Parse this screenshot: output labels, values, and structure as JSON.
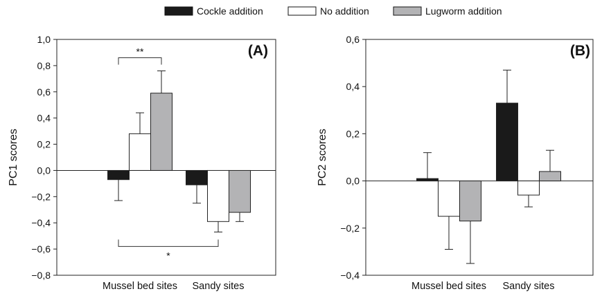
{
  "legend": [
    {
      "label": "Cockle addition",
      "color": "#1a1a1a"
    },
    {
      "label": "No addition",
      "color": "#ffffff"
    },
    {
      "label": "Lugworm addition",
      "color": "#b3b3b5"
    }
  ],
  "chart_data": [
    {
      "type": "bar",
      "panel_label": "(A)",
      "ylabel": "PC1 scores",
      "categories": [
        "Mussel bed sites",
        "Sandy sites"
      ],
      "ylim": [
        -0.8,
        1.0
      ],
      "yticks": [
        "1,0",
        "0,8",
        "0,6",
        "0,4",
        "0,2",
        "0,0",
        "−0,2",
        "−0,4",
        "−0,6",
        "−0,8"
      ],
      "ytick_values": [
        1.0,
        0.8,
        0.6,
        0.4,
        0.2,
        0.0,
        -0.2,
        -0.4,
        -0.6,
        -0.8
      ],
      "series": [
        {
          "name": "Cockle addition",
          "values": [
            -0.07,
            -0.11
          ],
          "errors": [
            0.16,
            0.14
          ]
        },
        {
          "name": "No addition",
          "values": [
            0.28,
            -0.39
          ],
          "errors": [
            0.16,
            0.08
          ]
        },
        {
          "name": "Lugworm addition",
          "values": [
            0.59,
            -0.32
          ],
          "errors": [
            0.17,
            0.07
          ]
        }
      ],
      "significance": [
        {
          "text": "**",
          "between": [
            0,
            2
          ],
          "group": 0,
          "y": 0.86,
          "side": "above"
        },
        {
          "text": "*",
          "from": [
            1,
            1
          ],
          "to": [
            0,
            0
          ],
          "y": -0.58,
          "side": "below"
        }
      ]
    },
    {
      "type": "bar",
      "panel_label": "(B)",
      "ylabel": "PC2 scores",
      "categories": [
        "Mussel bed sites",
        "Sandy sites"
      ],
      "ylim": [
        -0.4,
        0.6
      ],
      "yticks": [
        "0,6",
        "0,4",
        "0,2",
        "0,0",
        "−0,2",
        "−0,4"
      ],
      "ytick_values": [
        0.6,
        0.4,
        0.2,
        0.0,
        -0.2,
        -0.4
      ],
      "series": [
        {
          "name": "Cockle addition",
          "values": [
            0.01,
            0.33
          ],
          "errors": [
            0.11,
            0.14
          ]
        },
        {
          "name": "No addition",
          "values": [
            -0.15,
            -0.06
          ],
          "errors": [
            0.14,
            0.05
          ]
        },
        {
          "name": "Lugworm addition",
          "values": [
            -0.17,
            0.04
          ],
          "errors": [
            0.18,
            0.09
          ]
        }
      ]
    }
  ]
}
